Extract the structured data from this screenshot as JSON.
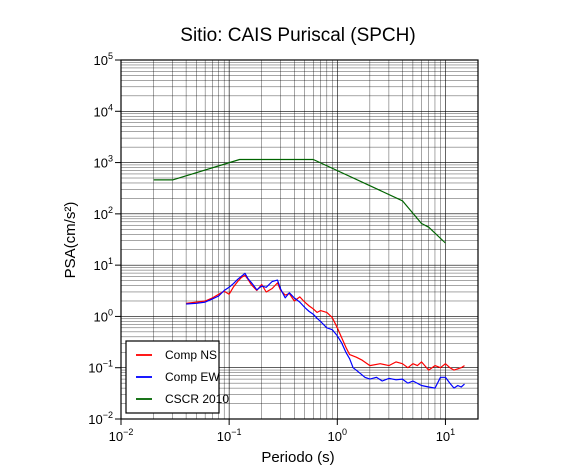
{
  "chart_data": {
    "type": "line",
    "title": "Sitio: CAIS Puriscal (SPCH)",
    "xlabel": "Periodo (s)",
    "ylabel": "PSA(cm/s²)",
    "xscale": "log",
    "yscale": "log",
    "xlim": [
      0.01,
      20
    ],
    "ylim": [
      0.01,
      100000
    ],
    "x_ticks": [
      {
        "value": 0.01,
        "base": "10",
        "exp": "−2"
      },
      {
        "value": 0.1,
        "base": "10",
        "exp": "−1"
      },
      {
        "value": 1,
        "base": "10",
        "exp": "0"
      },
      {
        "value": 10,
        "base": "10",
        "exp": "1"
      }
    ],
    "y_ticks": [
      {
        "value": 0.01,
        "base": "10",
        "exp": "−2"
      },
      {
        "value": 0.1,
        "base": "10",
        "exp": "−1"
      },
      {
        "value": 1,
        "base": "10",
        "exp": "0"
      },
      {
        "value": 10,
        "base": "10",
        "exp": "1"
      },
      {
        "value": 100,
        "base": "10",
        "exp": "2"
      },
      {
        "value": 1000,
        "base": "10",
        "exp": "3"
      },
      {
        "value": 10000,
        "base": "10",
        "exp": "4"
      },
      {
        "value": 100000,
        "base": "10",
        "exp": "5"
      }
    ],
    "grid": true,
    "legend_position": "bottom-left",
    "series": [
      {
        "name": "Comp NS",
        "color": "#ff0000",
        "points": [
          [
            0.04,
            1.8
          ],
          [
            0.05,
            1.9
          ],
          [
            0.06,
            2.0
          ],
          [
            0.07,
            2.3
          ],
          [
            0.08,
            2.7
          ],
          [
            0.09,
            3.1
          ],
          [
            0.1,
            2.7
          ],
          [
            0.11,
            3.8
          ],
          [
            0.12,
            4.8
          ],
          [
            0.13,
            5.8
          ],
          [
            0.14,
            6.3
          ],
          [
            0.15,
            5.2
          ],
          [
            0.16,
            4.2
          ],
          [
            0.18,
            3.2
          ],
          [
            0.2,
            4.2
          ],
          [
            0.22,
            3.0
          ],
          [
            0.25,
            3.5
          ],
          [
            0.28,
            4.5
          ],
          [
            0.3,
            3.2
          ],
          [
            0.33,
            2.6
          ],
          [
            0.36,
            2.8
          ],
          [
            0.4,
            2.0
          ],
          [
            0.45,
            2.4
          ],
          [
            0.5,
            1.9
          ],
          [
            0.55,
            1.6
          ],
          [
            0.6,
            1.4
          ],
          [
            0.65,
            1.2
          ],
          [
            0.7,
            1.3
          ],
          [
            0.8,
            1.2
          ],
          [
            0.9,
            0.95
          ],
          [
            1.0,
            0.6
          ],
          [
            1.1,
            0.38
          ],
          [
            1.2,
            0.25
          ],
          [
            1.3,
            0.18
          ],
          [
            1.5,
            0.16
          ],
          [
            1.7,
            0.14
          ],
          [
            2.0,
            0.11
          ],
          [
            2.5,
            0.12
          ],
          [
            3.0,
            0.11
          ],
          [
            3.5,
            0.13
          ],
          [
            4.0,
            0.12
          ],
          [
            4.5,
            0.1
          ],
          [
            5.0,
            0.12
          ],
          [
            5.5,
            0.11
          ],
          [
            6.0,
            0.13
          ],
          [
            7.0,
            0.09
          ],
          [
            8.0,
            0.11
          ],
          [
            9.0,
            0.1
          ],
          [
            10.0,
            0.12
          ],
          [
            11.0,
            0.1
          ],
          [
            12.0,
            0.09
          ],
          [
            14.0,
            0.1
          ],
          [
            15.0,
            0.11
          ]
        ]
      },
      {
        "name": "Comp EW",
        "color": "#0000ff",
        "points": [
          [
            0.04,
            1.75
          ],
          [
            0.05,
            1.8
          ],
          [
            0.06,
            1.9
          ],
          [
            0.07,
            2.2
          ],
          [
            0.08,
            2.5
          ],
          [
            0.09,
            3.2
          ],
          [
            0.1,
            3.7
          ],
          [
            0.11,
            4.4
          ],
          [
            0.12,
            5.3
          ],
          [
            0.13,
            6.1
          ],
          [
            0.14,
            6.9
          ],
          [
            0.15,
            5.4
          ],
          [
            0.16,
            4.6
          ],
          [
            0.17,
            3.9
          ],
          [
            0.18,
            3.3
          ],
          [
            0.2,
            3.9
          ],
          [
            0.22,
            3.7
          ],
          [
            0.25,
            4.8
          ],
          [
            0.28,
            5.1
          ],
          [
            0.3,
            3.4
          ],
          [
            0.33,
            2.3
          ],
          [
            0.36,
            2.9
          ],
          [
            0.4,
            2.3
          ],
          [
            0.45,
            1.9
          ],
          [
            0.5,
            1.5
          ],
          [
            0.55,
            1.25
          ],
          [
            0.6,
            1.1
          ],
          [
            0.65,
            0.92
          ],
          [
            0.7,
            0.8
          ],
          [
            0.8,
            0.6
          ],
          [
            0.9,
            0.55
          ],
          [
            1.0,
            0.42
          ],
          [
            1.1,
            0.3
          ],
          [
            1.2,
            0.2
          ],
          [
            1.3,
            0.15
          ],
          [
            1.4,
            0.1
          ],
          [
            1.6,
            0.08
          ],
          [
            1.8,
            0.065
          ],
          [
            2.0,
            0.06
          ],
          [
            2.3,
            0.065
          ],
          [
            2.6,
            0.055
          ],
          [
            3.0,
            0.062
          ],
          [
            3.5,
            0.058
          ],
          [
            4.0,
            0.06
          ],
          [
            4.5,
            0.05
          ],
          [
            5.0,
            0.055
          ],
          [
            6.0,
            0.045
          ],
          [
            7.0,
            0.042
          ],
          [
            8.0,
            0.04
          ],
          [
            9.0,
            0.065
          ],
          [
            10.0,
            0.065
          ],
          [
            11.0,
            0.05
          ],
          [
            12.0,
            0.04
          ],
          [
            13.0,
            0.045
          ],
          [
            14.0,
            0.042
          ],
          [
            15.0,
            0.048
          ]
        ]
      },
      {
        "name": "CSCR 2010",
        "color": "#006400",
        "points": [
          [
            0.02,
            460
          ],
          [
            0.03,
            460
          ],
          [
            0.125,
            1150
          ],
          [
            0.6,
            1150
          ],
          [
            4.0,
            180
          ],
          [
            6.0,
            65
          ],
          [
            7.0,
            55
          ],
          [
            10.0,
            27
          ]
        ]
      }
    ]
  }
}
